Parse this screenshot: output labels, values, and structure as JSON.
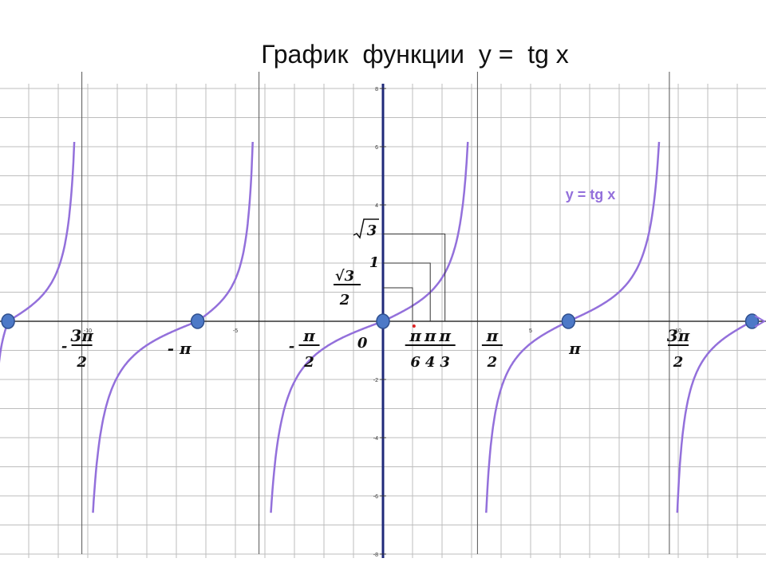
{
  "title": "График  функции  y =  tg x",
  "chart_data": {
    "type": "line",
    "title": "График  функции  y =  tg x",
    "xlabel": "",
    "ylabel": "",
    "xlim": [
      -13,
      12.7
    ],
    "ylim": [
      -8.1,
      8.1
    ],
    "grid": true,
    "series": [
      {
        "name": "y = tg x",
        "function": "tan(x)",
        "color": "#9370DB",
        "x_range": [
          -12.5,
          11.2
        ]
      }
    ],
    "asymptotes": [
      -10.2,
      -4.2,
      3.2,
      9.7
    ],
    "x_ticks": [
      -10,
      -5,
      5,
      10
    ],
    "y_ticks": [
      -8,
      -6,
      -4,
      -2,
      4,
      6,
      8
    ],
    "zeros": [
      -12.7,
      -6.28,
      0,
      6.28,
      12.5
    ],
    "special_points": [
      {
        "x": 1.0,
        "y": 1.15,
        "label_num": "√3",
        "label_den": "2"
      },
      {
        "x": 1.6,
        "y": 2.0,
        "label": "1"
      },
      {
        "x": 2.1,
        "y": 3.0,
        "label": "√3"
      }
    ],
    "x_labels": [
      {
        "x": -10,
        "sign": "-",
        "num": "3π",
        "den": "2"
      },
      {
        "x": -6.28,
        "sign": "",
        "num": "π",
        "den": "",
        "prefix": "-"
      },
      {
        "x": -2.5,
        "sign": "-",
        "num": "π",
        "den": "2"
      },
      {
        "x": -0.7,
        "sign": "",
        "num": "0",
        "den": ""
      },
      {
        "x": 1.1,
        "sign": "",
        "num": "π",
        "den": "6"
      },
      {
        "x": 1.6,
        "sign": "",
        "num": "π",
        "den": "4"
      },
      {
        "x": 2.1,
        "sign": "",
        "num": "π",
        "den": "3"
      },
      {
        "x": 3.7,
        "sign": "",
        "num": "π",
        "den": "2"
      },
      {
        "x": 6.5,
        "sign": "",
        "num": "π",
        "den": ""
      },
      {
        "x": 10.0,
        "sign": "",
        "num": "3π",
        "den": "2"
      }
    ],
    "legend_label": "y = tg x"
  }
}
